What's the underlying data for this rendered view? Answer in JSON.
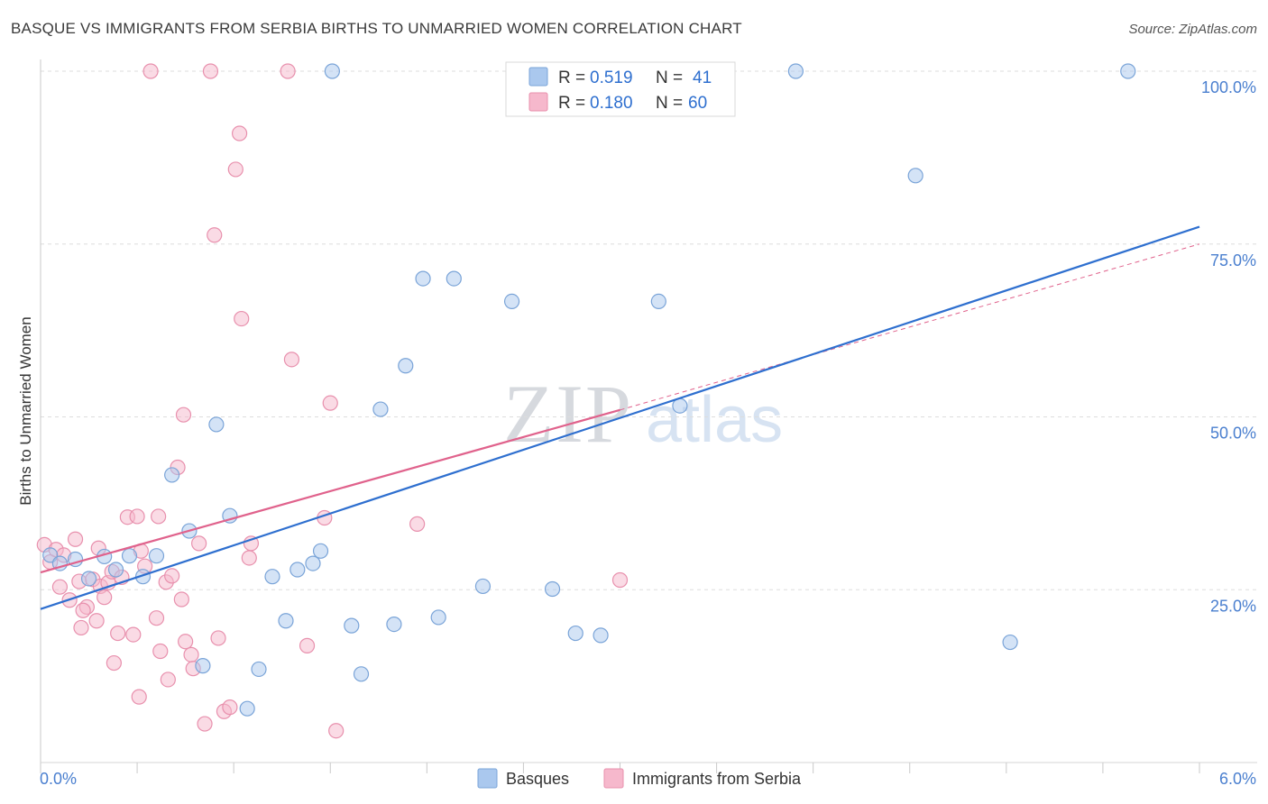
{
  "header": {
    "title": "BASQUE VS IMMIGRANTS FROM SERBIA BIRTHS TO UNMARRIED WOMEN CORRELATION CHART",
    "source": "Source: ZipAtlas.com"
  },
  "watermark": {
    "zip": "ZIP",
    "atlas": "atlas"
  },
  "colors": {
    "basques_fill": "#aac8ee",
    "basques_stroke": "#7aa4d8",
    "basques_line": "#2e6fcf",
    "serbia_fill": "#f6b8cc",
    "serbia_stroke": "#e890ad",
    "serbia_line": "#e0628c",
    "axis_label": "#4a7fcf",
    "grid": "#dddddd"
  },
  "stats_legend": [
    {
      "r_label": "R =",
      "r_value": "0.519",
      "n_label": "N =",
      "n_value": "41"
    },
    {
      "r_label": "R =",
      "r_value": "0.180",
      "n_label": "N =",
      "n_value": "60"
    }
  ],
  "chart_data": {
    "type": "scatter",
    "title": "BASQUE VS IMMIGRANTS FROM SERBIA BIRTHS TO UNMARRIED WOMEN CORRELATION CHART",
    "xlabel": "",
    "ylabel": "Births to Unmarried Women",
    "xlim": [
      0,
      6
    ],
    "ylim": [
      0,
      100
    ],
    "x_tick_labels": {
      "left": "0.0%",
      "right": "6.0%"
    },
    "y_ticks": [
      {
        "value": 25,
        "label": "25.0%"
      },
      {
        "value": 50,
        "label": "50.0%"
      },
      {
        "value": 75,
        "label": "75.0%"
      },
      {
        "value": 100,
        "label": "100.0%"
      }
    ],
    "grid": true,
    "legend_position": "bottom-center",
    "series": [
      {
        "name": "Basques",
        "points": [
          [
            0.05,
            30.0
          ],
          [
            0.1,
            28.8
          ],
          [
            0.18,
            29.4
          ],
          [
            0.25,
            26.6
          ],
          [
            0.33,
            29.8
          ],
          [
            0.39,
            27.9
          ],
          [
            0.46,
            29.9
          ],
          [
            0.53,
            26.9
          ],
          [
            0.6,
            29.9
          ],
          [
            0.68,
            41.6
          ],
          [
            0.77,
            33.5
          ],
          [
            0.84,
            14.0
          ],
          [
            0.91,
            48.9
          ],
          [
            0.98,
            35.7
          ],
          [
            1.07,
            7.8
          ],
          [
            1.13,
            13.5
          ],
          [
            1.2,
            26.9
          ],
          [
            1.27,
            20.5
          ],
          [
            1.33,
            27.9
          ],
          [
            1.41,
            28.8
          ],
          [
            1.45,
            30.6
          ],
          [
            1.51,
            100.0
          ],
          [
            1.61,
            19.8
          ],
          [
            1.66,
            12.8
          ],
          [
            1.76,
            51.1
          ],
          [
            1.83,
            20.0
          ],
          [
            1.89,
            57.4
          ],
          [
            1.98,
            70.0
          ],
          [
            2.06,
            21.0
          ],
          [
            2.14,
            70.0
          ],
          [
            2.29,
            25.5
          ],
          [
            2.44,
            66.7
          ],
          [
            2.65,
            25.1
          ],
          [
            2.77,
            18.7
          ],
          [
            2.9,
            18.4
          ],
          [
            3.2,
            66.7
          ],
          [
            3.31,
            51.6
          ],
          [
            3.91,
            100.0
          ],
          [
            4.53,
            84.9
          ],
          [
            5.02,
            17.4
          ],
          [
            5.63,
            100.0
          ]
        ],
        "trendline": {
          "x": [
            0.0,
            6.0
          ],
          "y": [
            22.2,
            77.5
          ]
        }
      },
      {
        "name": "Immigrants from Serbia",
        "points": [
          [
            0.02,
            31.5
          ],
          [
            0.05,
            29.0
          ],
          [
            0.08,
            30.8
          ],
          [
            0.1,
            25.4
          ],
          [
            0.12,
            30.0
          ],
          [
            0.15,
            23.5
          ],
          [
            0.18,
            32.3
          ],
          [
            0.2,
            26.2
          ],
          [
            0.21,
            19.5
          ],
          [
            0.24,
            22.5
          ],
          [
            0.27,
            26.5
          ],
          [
            0.29,
            20.5
          ],
          [
            0.3,
            31.0
          ],
          [
            0.31,
            25.5
          ],
          [
            0.33,
            23.9
          ],
          [
            0.35,
            26.0
          ],
          [
            0.37,
            27.6
          ],
          [
            0.38,
            14.4
          ],
          [
            0.4,
            18.7
          ],
          [
            0.42,
            26.8
          ],
          [
            0.45,
            35.5
          ],
          [
            0.48,
            18.5
          ],
          [
            0.5,
            35.6
          ],
          [
            0.51,
            9.5
          ],
          [
            0.52,
            30.6
          ],
          [
            0.54,
            28.4
          ],
          [
            0.57,
            100.0
          ],
          [
            0.6,
            20.9
          ],
          [
            0.61,
            35.6
          ],
          [
            0.62,
            16.1
          ],
          [
            0.65,
            26.1
          ],
          [
            0.66,
            12.0
          ],
          [
            0.68,
            27.0
          ],
          [
            0.71,
            42.7
          ],
          [
            0.73,
            23.6
          ],
          [
            0.74,
            50.3
          ],
          [
            0.75,
            17.5
          ],
          [
            0.78,
            15.6
          ],
          [
            0.79,
            13.6
          ],
          [
            0.82,
            31.7
          ],
          [
            0.85,
            5.6
          ],
          [
            0.88,
            100.0
          ],
          [
            0.9,
            76.3
          ],
          [
            0.92,
            18.0
          ],
          [
            0.95,
            7.4
          ],
          [
            0.98,
            8.0
          ],
          [
            1.01,
            85.8
          ],
          [
            1.03,
            91.0
          ],
          [
            1.04,
            64.2
          ],
          [
            1.08,
            29.6
          ],
          [
            1.09,
            31.7
          ],
          [
            1.28,
            100.0
          ],
          [
            1.3,
            58.3
          ],
          [
            1.38,
            16.9
          ],
          [
            1.47,
            35.4
          ],
          [
            1.5,
            52.0
          ],
          [
            1.53,
            4.6
          ],
          [
            1.95,
            34.5
          ],
          [
            3.0,
            26.4
          ],
          [
            0.22,
            22.0
          ]
        ],
        "trendline": {
          "x": [
            0.0,
            3.0
          ],
          "y": [
            27.5,
            51.0
          ]
        },
        "trendline_extension": {
          "x": [
            3.0,
            6.0
          ],
          "y": [
            51.0,
            75.0
          ]
        }
      }
    ]
  }
}
